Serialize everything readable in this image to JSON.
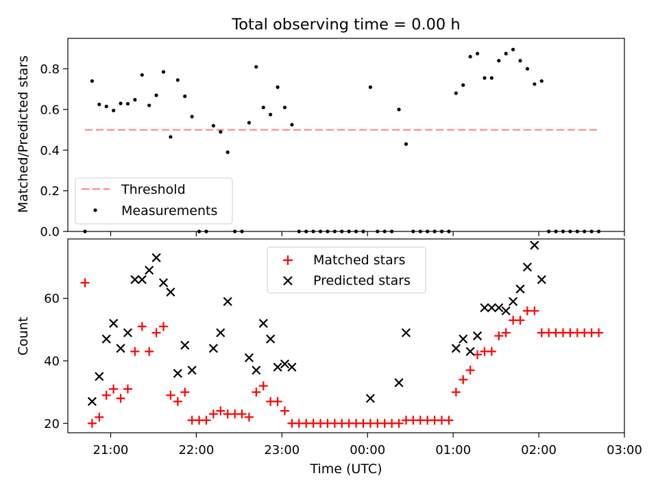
{
  "chart_data": [
    {
      "type": "scatter",
      "title": "Total observing time = 0.00 h",
      "ylabel": "Matched/Predicted stars",
      "xlim": [
        "20:30",
        "03:00"
      ],
      "ylim": [
        0,
        0.95
      ],
      "yticks": [
        0.0,
        0.2,
        0.4,
        0.6,
        0.8
      ],
      "ytick_labels": [
        "0.0",
        "0.2",
        "0.4",
        "0.6",
        "0.8"
      ],
      "grid": false,
      "legend_position": "lower-left",
      "threshold": {
        "name": "Threshold",
        "y": 0.5,
        "x_range": [
          "20:42",
          "02:42"
        ],
        "style": "dashed",
        "color": "#ff7f7f"
      },
      "series": [
        {
          "name": "Measurements",
          "marker": "dot",
          "color": "#000000",
          "points": [
            {
              "x": "20:42",
              "y": 0.0
            },
            {
              "x": "20:47",
              "y": 0.74
            },
            {
              "x": "20:52",
              "y": 0.625
            },
            {
              "x": "20:57",
              "y": 0.615
            },
            {
              "x": "21:02",
              "y": 0.595
            },
            {
              "x": "21:07",
              "y": 0.63
            },
            {
              "x": "21:12",
              "y": 0.628
            },
            {
              "x": "21:17",
              "y": 0.648
            },
            {
              "x": "21:22",
              "y": 0.77
            },
            {
              "x": "21:27",
              "y": 0.62
            },
            {
              "x": "21:32",
              "y": 0.67
            },
            {
              "x": "21:37",
              "y": 0.785
            },
            {
              "x": "21:42",
              "y": 0.465
            },
            {
              "x": "21:47",
              "y": 0.745
            },
            {
              "x": "21:52",
              "y": 0.665
            },
            {
              "x": "21:57",
              "y": 0.565
            },
            {
              "x": "22:02",
              "y": 0.0
            },
            {
              "x": "22:07",
              "y": 0.0
            },
            {
              "x": "22:12",
              "y": 0.52
            },
            {
              "x": "22:17",
              "y": 0.49
            },
            {
              "x": "22:22",
              "y": 0.39
            },
            {
              "x": "22:27",
              "y": 0.0
            },
            {
              "x": "22:32",
              "y": 0.0
            },
            {
              "x": "22:37",
              "y": 0.535
            },
            {
              "x": "22:42",
              "y": 0.81
            },
            {
              "x": "22:47",
              "y": 0.61
            },
            {
              "x": "22:52",
              "y": 0.575
            },
            {
              "x": "22:57",
              "y": 0.71
            },
            {
              "x": "23:02",
              "y": 0.61
            },
            {
              "x": "23:07",
              "y": 0.525
            },
            {
              "x": "23:12",
              "y": 0.0
            },
            {
              "x": "23:17",
              "y": 0.0
            },
            {
              "x": "23:22",
              "y": 0.0
            },
            {
              "x": "23:27",
              "y": 0.0
            },
            {
              "x": "23:32",
              "y": 0.0
            },
            {
              "x": "23:37",
              "y": 0.0
            },
            {
              "x": "23:42",
              "y": 0.0
            },
            {
              "x": "23:47",
              "y": 0.0
            },
            {
              "x": "23:52",
              "y": 0.0
            },
            {
              "x": "23:57",
              "y": 0.0
            },
            {
              "x": "00:02",
              "y": 0.71
            },
            {
              "x": "00:07",
              "y": 0.0
            },
            {
              "x": "00:12",
              "y": 0.0
            },
            {
              "x": "00:17",
              "y": 0.0
            },
            {
              "x": "00:22",
              "y": 0.6
            },
            {
              "x": "00:27",
              "y": 0.43
            },
            {
              "x": "00:32",
              "y": 0.0
            },
            {
              "x": "00:37",
              "y": 0.0
            },
            {
              "x": "00:42",
              "y": 0.0
            },
            {
              "x": "00:47",
              "y": 0.0
            },
            {
              "x": "00:52",
              "y": 0.0
            },
            {
              "x": "00:57",
              "y": 0.0
            },
            {
              "x": "01:02",
              "y": 0.68
            },
            {
              "x": "01:07",
              "y": 0.72
            },
            {
              "x": "01:12",
              "y": 0.86
            },
            {
              "x": "01:17",
              "y": 0.875
            },
            {
              "x": "01:22",
              "y": 0.755
            },
            {
              "x": "01:27",
              "y": 0.755
            },
            {
              "x": "01:32",
              "y": 0.84
            },
            {
              "x": "01:37",
              "y": 0.875
            },
            {
              "x": "01:42",
              "y": 0.895
            },
            {
              "x": "01:47",
              "y": 0.84
            },
            {
              "x": "01:52",
              "y": 0.8
            },
            {
              "x": "01:57",
              "y": 0.725
            },
            {
              "x": "02:02",
              "y": 0.74
            },
            {
              "x": "02:07",
              "y": 0.0
            },
            {
              "x": "02:12",
              "y": 0.0
            },
            {
              "x": "02:17",
              "y": 0.0
            },
            {
              "x": "02:22",
              "y": 0.0
            },
            {
              "x": "02:27",
              "y": 0.0
            },
            {
              "x": "02:32",
              "y": 0.0
            },
            {
              "x": "02:37",
              "y": 0.0
            },
            {
              "x": "02:42",
              "y": 0.0
            }
          ]
        }
      ]
    },
    {
      "type": "scatter",
      "xlabel": "Time (UTC)",
      "ylabel": "Count",
      "xlim": [
        "20:30",
        "03:00"
      ],
      "ylim": [
        17,
        79
      ],
      "xticks": [
        "21:00",
        "22:00",
        "23:00",
        "00:00",
        "01:00",
        "02:00",
        "03:00"
      ],
      "yticks": [
        20,
        40,
        60
      ],
      "ytick_labels": [
        "20",
        "40",
        "60"
      ],
      "grid": false,
      "legend_position": "upper-center",
      "series": [
        {
          "name": "Matched stars",
          "marker": "plus",
          "color": "#ff0000",
          "points": [
            {
              "x": "20:42",
              "y": 65
            },
            {
              "x": "20:47",
              "y": 20
            },
            {
              "x": "20:52",
              "y": 22
            },
            {
              "x": "20:57",
              "y": 29
            },
            {
              "x": "21:02",
              "y": 31
            },
            {
              "x": "21:07",
              "y": 28
            },
            {
              "x": "21:12",
              "y": 31
            },
            {
              "x": "21:17",
              "y": 43
            },
            {
              "x": "21:22",
              "y": 51
            },
            {
              "x": "21:27",
              "y": 43
            },
            {
              "x": "21:32",
              "y": 49
            },
            {
              "x": "21:37",
              "y": 51
            },
            {
              "x": "21:42",
              "y": 29
            },
            {
              "x": "21:47",
              "y": 27
            },
            {
              "x": "21:52",
              "y": 30
            },
            {
              "x": "21:57",
              "y": 21
            },
            {
              "x": "22:02",
              "y": 21
            },
            {
              "x": "22:07",
              "y": 21
            },
            {
              "x": "22:12",
              "y": 23
            },
            {
              "x": "22:17",
              "y": 24
            },
            {
              "x": "22:22",
              "y": 23
            },
            {
              "x": "22:27",
              "y": 23
            },
            {
              "x": "22:32",
              "y": 23
            },
            {
              "x": "22:37",
              "y": 22
            },
            {
              "x": "22:42",
              "y": 30
            },
            {
              "x": "22:47",
              "y": 32
            },
            {
              "x": "22:52",
              "y": 27
            },
            {
              "x": "22:57",
              "y": 27
            },
            {
              "x": "23:02",
              "y": 24
            },
            {
              "x": "23:07",
              "y": 20
            },
            {
              "x": "23:12",
              "y": 20
            },
            {
              "x": "23:17",
              "y": 20
            },
            {
              "x": "23:22",
              "y": 20
            },
            {
              "x": "23:27",
              "y": 20
            },
            {
              "x": "23:32",
              "y": 20
            },
            {
              "x": "23:37",
              "y": 20
            },
            {
              "x": "23:42",
              "y": 20
            },
            {
              "x": "23:47",
              "y": 20
            },
            {
              "x": "23:52",
              "y": 20
            },
            {
              "x": "23:57",
              "y": 20
            },
            {
              "x": "00:02",
              "y": 20
            },
            {
              "x": "00:07",
              "y": 20
            },
            {
              "x": "00:12",
              "y": 20
            },
            {
              "x": "00:17",
              "y": 20
            },
            {
              "x": "00:22",
              "y": 20
            },
            {
              "x": "00:27",
              "y": 21
            },
            {
              "x": "00:32",
              "y": 21
            },
            {
              "x": "00:37",
              "y": 21
            },
            {
              "x": "00:42",
              "y": 21
            },
            {
              "x": "00:47",
              "y": 21
            },
            {
              "x": "00:52",
              "y": 21
            },
            {
              "x": "00:57",
              "y": 21
            },
            {
              "x": "01:02",
              "y": 30
            },
            {
              "x": "01:07",
              "y": 34
            },
            {
              "x": "01:12",
              "y": 37
            },
            {
              "x": "01:17",
              "y": 42
            },
            {
              "x": "01:22",
              "y": 43
            },
            {
              "x": "01:27",
              "y": 43
            },
            {
              "x": "01:32",
              "y": 48
            },
            {
              "x": "01:37",
              "y": 49
            },
            {
              "x": "01:42",
              "y": 53
            },
            {
              "x": "01:47",
              "y": 53
            },
            {
              "x": "01:52",
              "y": 56
            },
            {
              "x": "01:57",
              "y": 56
            },
            {
              "x": "02:02",
              "y": 49
            },
            {
              "x": "02:07",
              "y": 49
            },
            {
              "x": "02:12",
              "y": 49
            },
            {
              "x": "02:17",
              "y": 49
            },
            {
              "x": "02:22",
              "y": 49
            },
            {
              "x": "02:27",
              "y": 49
            },
            {
              "x": "02:32",
              "y": 49
            },
            {
              "x": "02:37",
              "y": 49
            },
            {
              "x": "02:42",
              "y": 49
            }
          ]
        },
        {
          "name": "Predicted stars",
          "marker": "x",
          "color": "#000000",
          "points": [
            {
              "x": "20:47",
              "y": 27
            },
            {
              "x": "20:52",
              "y": 35
            },
            {
              "x": "20:57",
              "y": 47
            },
            {
              "x": "21:02",
              "y": 52
            },
            {
              "x": "21:07",
              "y": 44
            },
            {
              "x": "21:12",
              "y": 49
            },
            {
              "x": "21:17",
              "y": 66
            },
            {
              "x": "21:22",
              "y": 66
            },
            {
              "x": "21:27",
              "y": 69
            },
            {
              "x": "21:32",
              "y": 73
            },
            {
              "x": "21:37",
              "y": 65
            },
            {
              "x": "21:42",
              "y": 62
            },
            {
              "x": "21:47",
              "y": 36
            },
            {
              "x": "21:52",
              "y": 45
            },
            {
              "x": "21:57",
              "y": 37
            },
            {
              "x": "22:12",
              "y": 44
            },
            {
              "x": "22:17",
              "y": 49
            },
            {
              "x": "22:22",
              "y": 59
            },
            {
              "x": "22:37",
              "y": 41
            },
            {
              "x": "22:42",
              "y": 37
            },
            {
              "x": "22:47",
              "y": 52
            },
            {
              "x": "22:52",
              "y": 47
            },
            {
              "x": "22:57",
              "y": 38
            },
            {
              "x": "23:02",
              "y": 39
            },
            {
              "x": "23:07",
              "y": 38
            },
            {
              "x": "00:02",
              "y": 28
            },
            {
              "x": "00:22",
              "y": 33
            },
            {
              "x": "00:27",
              "y": 49
            },
            {
              "x": "01:02",
              "y": 44
            },
            {
              "x": "01:07",
              "y": 47
            },
            {
              "x": "01:12",
              "y": 43
            },
            {
              "x": "01:17",
              "y": 48
            },
            {
              "x": "01:22",
              "y": 57
            },
            {
              "x": "01:27",
              "y": 57
            },
            {
              "x": "01:32",
              "y": 57
            },
            {
              "x": "01:37",
              "y": 56
            },
            {
              "x": "01:42",
              "y": 59
            },
            {
              "x": "01:47",
              "y": 63
            },
            {
              "x": "01:52",
              "y": 70
            },
            {
              "x": "01:57",
              "y": 77
            },
            {
              "x": "02:02",
              "y": 66
            }
          ]
        }
      ]
    }
  ]
}
